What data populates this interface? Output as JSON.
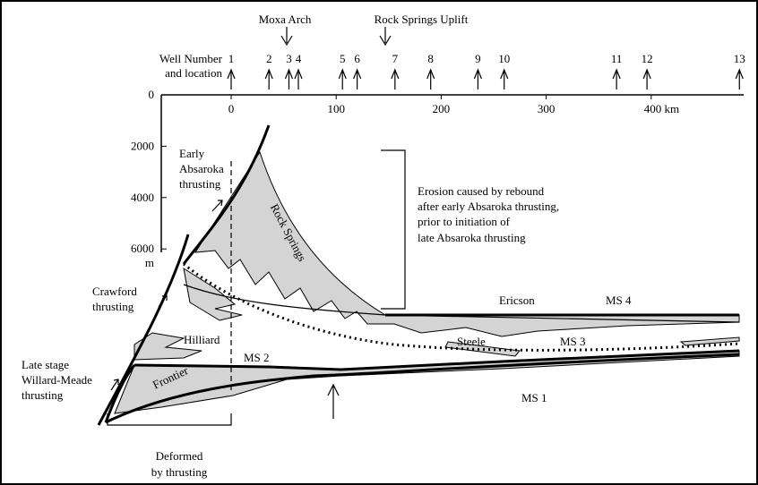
{
  "annotations": {
    "moxa_arch": "Moxa Arch",
    "rock_springs_uplift": "Rock Springs Uplift"
  },
  "well_axis": {
    "label": [
      "Well Number",
      "and location"
    ],
    "wells": [
      {
        "label": "1",
        "km": 0
      },
      {
        "label": "2",
        "km": 36
      },
      {
        "label": "3",
        "km": 55
      },
      {
        "label": "4",
        "km": 64
      },
      {
        "label": "5",
        "km": 106
      },
      {
        "label": "6",
        "km": 120
      },
      {
        "label": "7",
        "km": 156
      },
      {
        "label": "8",
        "km": 190
      },
      {
        "label": "9",
        "km": 235
      },
      {
        "label": "10",
        "km": 260
      },
      {
        "label": "11",
        "km": 367
      },
      {
        "label": "12",
        "km": 396
      },
      {
        "label": "13",
        "km": 484
      }
    ]
  },
  "x_axis": {
    "ticks": [
      0,
      100,
      200,
      300,
      {
        "value": 400,
        "label": "400 km"
      }
    ]
  },
  "y_axis": {
    "ticks": [
      0,
      2000,
      4000,
      6000
    ],
    "unit": "m"
  },
  "labels": {
    "early_absaroka": [
      "Early",
      "Absaroka",
      "thrusting"
    ],
    "rock_springs": "Rock Springs",
    "erosion": [
      "Erosion caused by rebound",
      "after early Absaroka thrusting,",
      "prior to initiation of",
      "late Absaroka thrusting"
    ],
    "crawford": [
      "Crawford",
      "thrusting"
    ],
    "ericson": "Ericson",
    "ms4": "MS 4",
    "hilliard": "Hilliard",
    "steele": "Steele",
    "ms3": "MS 3",
    "ms2": "MS 2",
    "late_stage": [
      "Late stage",
      "Willard-Meade",
      "thrusting"
    ],
    "frontier": "Frontier",
    "ms1": "MS 1",
    "deformed": [
      "Deformed",
      "by thrusting"
    ]
  }
}
